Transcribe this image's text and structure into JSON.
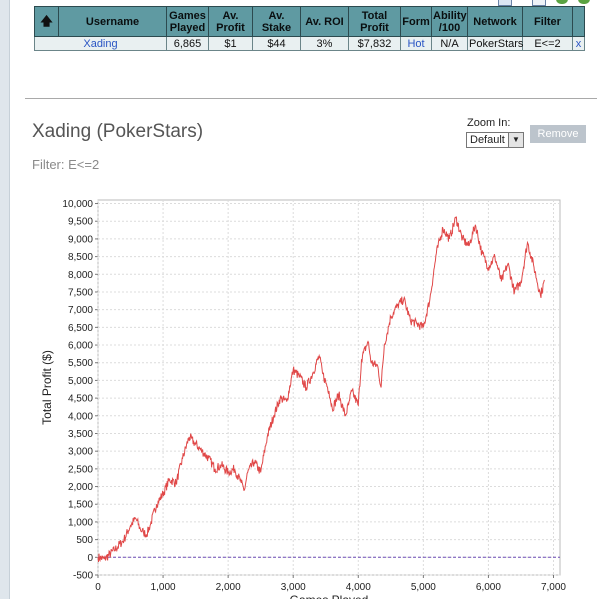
{
  "table": {
    "headers": [
      "Username",
      "Games Played",
      "Av. Profit",
      "Av. Stake",
      "Av. ROI",
      "Total Profit",
      "Form",
      "Ability /100",
      "Network",
      "Filter",
      ""
    ],
    "row": {
      "username": "Xading",
      "games_played": "6,865",
      "av_profit": "$1",
      "av_stake": "$44",
      "av_roi": "3%",
      "total_profit": "$7,832",
      "form": "Hot",
      "ability": "N/A",
      "network": "PokerStars",
      "filter": "E<=2",
      "remove": "x"
    }
  },
  "panel": {
    "title": "Xading (PokerStars)",
    "filter_line": "Filter: E<=2",
    "zoom_label": "Zoom In:",
    "zoom_value": "Default",
    "remove_label": "Remove"
  },
  "chart_data": {
    "type": "line",
    "xlabel": "Games Played",
    "ylabel": "Total Profit ($)",
    "xlim": [
      0,
      7100
    ],
    "ylim": [
      -500,
      10100
    ],
    "xticks": [
      0,
      1000,
      2000,
      3000,
      4000,
      5000,
      6000,
      7000
    ],
    "yticks": [
      -500,
      0,
      500,
      1000,
      1500,
      2000,
      2500,
      3000,
      3500,
      4000,
      4500,
      5000,
      5500,
      6000,
      6500,
      7000,
      7500,
      8000,
      8500,
      9000,
      9500,
      10000
    ],
    "grid": true,
    "line_color": "#e04848",
    "zero_line_color": "#6f4fb8",
    "series": [
      {
        "x": [
          0,
          100,
          250,
          400,
          500,
          580,
          650,
          700,
          750,
          800,
          900,
          1000,
          1100,
          1200,
          1300,
          1400,
          1500,
          1600,
          1700,
          1800,
          1900,
          2000,
          2100,
          2200,
          2250,
          2300,
          2400,
          2500,
          2600,
          2700,
          2800,
          2900,
          3000,
          3100,
          3200,
          3300,
          3400,
          3450,
          3550,
          3600,
          3700,
          3800,
          3850,
          3900,
          4000,
          4050,
          4150,
          4200,
          4300,
          4350,
          4400,
          4500,
          4600,
          4700,
          4800,
          4900,
          5000,
          5100,
          5200,
          5300,
          5400,
          5500,
          5600,
          5700,
          5800,
          5900,
          6000,
          6100,
          6200,
          6300,
          6400,
          6500,
          6600,
          6700,
          6800,
          6865
        ],
        "y": [
          0,
          -50,
          200,
          500,
          900,
          1100,
          800,
          700,
          650,
          900,
          1500,
          1800,
          2200,
          2100,
          2800,
          3400,
          3200,
          3000,
          2800,
          2500,
          2600,
          2400,
          2500,
          2100,
          1900,
          2400,
          2700,
          2400,
          3400,
          4000,
          4500,
          4400,
          5300,
          5100,
          4800,
          5200,
          5700,
          5200,
          4700,
          4200,
          4600,
          4000,
          4300,
          4700,
          4300,
          5600,
          6100,
          5500,
          5400,
          4800,
          6000,
          6800,
          7100,
          7300,
          6700,
          6600,
          6500,
          7300,
          8600,
          9300,
          9000,
          9600,
          9000,
          8800,
          9400,
          8600,
          8200,
          8500,
          7800,
          8300,
          7500,
          7800,
          8900,
          8200,
          7400,
          7832
        ]
      }
    ]
  }
}
